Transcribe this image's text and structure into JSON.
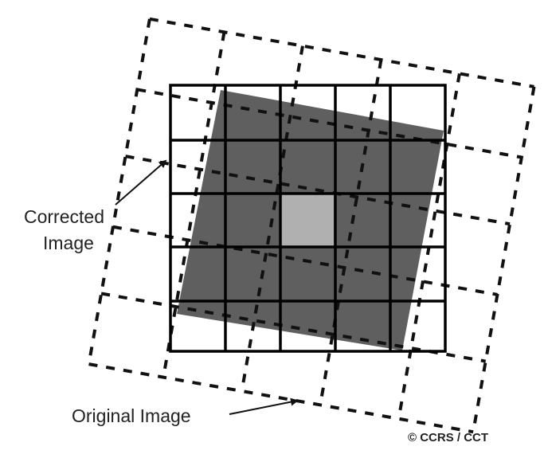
{
  "labels": {
    "corrected_image": [
      "Corrected",
      "Image"
    ],
    "original_image": "Original Image",
    "credit": "© CCRS / CCT"
  },
  "grid": {
    "rows": 5,
    "cols": 5,
    "highlighted_cell": {
      "row": 2,
      "col": 2
    }
  },
  "colors": {
    "corrected_grid_line": "#000000",
    "original_grid_line": "#111111",
    "tilted_fill": "#5f5f5f",
    "highlight_cell": "#b0b0b0",
    "text": "#222222"
  }
}
